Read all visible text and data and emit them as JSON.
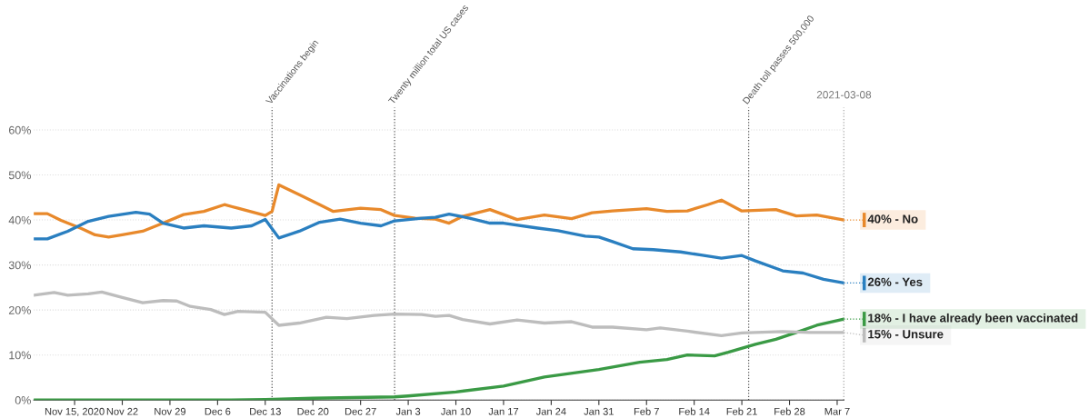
{
  "chart_data": {
    "type": "line",
    "xlim": [
      "2020-11-09",
      "2021-03-08"
    ],
    "ylim": [
      0,
      65
    ],
    "xticks": [
      {
        "value": "2020-11-15",
        "label": "Nov 15, 2020"
      },
      {
        "value": "2020-11-22",
        "label": "Nov 22"
      },
      {
        "value": "2020-11-29",
        "label": "Nov 29"
      },
      {
        "value": "2020-12-06",
        "label": "Dec 6"
      },
      {
        "value": "2020-12-13",
        "label": "Dec 13"
      },
      {
        "value": "2020-12-20",
        "label": "Dec 20"
      },
      {
        "value": "2020-12-27",
        "label": "Dec 27"
      },
      {
        "value": "2021-01-03",
        "label": "Jan 3"
      },
      {
        "value": "2021-01-10",
        "label": "Jan 10"
      },
      {
        "value": "2021-01-17",
        "label": "Jan 17"
      },
      {
        "value": "2021-01-24",
        "label": "Jan 24"
      },
      {
        "value": "2021-01-31",
        "label": "Jan 31"
      },
      {
        "value": "2021-02-07",
        "label": "Feb 7"
      },
      {
        "value": "2021-02-14",
        "label": "Feb 14"
      },
      {
        "value": "2021-02-21",
        "label": "Feb 21"
      },
      {
        "value": "2021-02-28",
        "label": "Feb 28"
      },
      {
        "value": "2021-03-07",
        "label": "Mar 7"
      }
    ],
    "yticks": [
      {
        "value": 0,
        "label": "0%"
      },
      {
        "value": 10,
        "label": "10%"
      },
      {
        "value": 20,
        "label": "20%"
      },
      {
        "value": 30,
        "label": "30%"
      },
      {
        "value": 40,
        "label": "40%"
      },
      {
        "value": 50,
        "label": "50%"
      },
      {
        "value": 60,
        "label": "60%"
      }
    ],
    "grid": "y",
    "legend": "right",
    "marker": "none",
    "line_style": "solid",
    "ref_lines": [
      {
        "axis": "x",
        "value": "2020-12-14",
        "label": "Vaccinations begin",
        "color": "#555555",
        "line_style": "dotted"
      },
      {
        "axis": "x",
        "value": "2021-01-01",
        "label": "Twenty million total US cases",
        "color": "#555555",
        "line_style": "dotted"
      },
      {
        "axis": "x",
        "value": "2021-02-22",
        "label": "Death toll passes 500,000",
        "color": "#555555",
        "line_style": "dotted"
      },
      {
        "axis": "x",
        "value": "2021-03-08",
        "label": "2021-03-08",
        "color": "#555555",
        "line_style": "dotted"
      }
    ],
    "series": [
      {
        "name": "40% - No",
        "color": "#e8892b",
        "x": [
          "2020-11-09",
          "2020-11-11",
          "2020-11-13",
          "2020-11-16",
          "2020-11-18",
          "2020-11-20",
          "2020-11-22",
          "2020-11-25",
          "2020-11-28",
          "2020-12-01",
          "2020-12-04",
          "2020-12-07",
          "2020-12-09",
          "2020-12-13",
          "2020-12-14",
          "2020-12-15",
          "2020-12-18",
          "2020-12-21",
          "2020-12-23",
          "2020-12-27",
          "2020-12-30",
          "2021-01-01",
          "2021-01-04",
          "2021-01-07",
          "2021-01-09",
          "2021-01-11",
          "2021-01-15",
          "2021-01-17",
          "2021-01-19",
          "2021-01-23",
          "2021-01-27",
          "2021-01-30",
          "2021-02-02",
          "2021-02-07",
          "2021-02-10",
          "2021-02-13",
          "2021-02-16",
          "2021-02-18",
          "2021-02-21",
          "2021-02-26",
          "2021-03-01",
          "2021-03-04",
          "2021-03-08"
        ],
        "values": [
          41.4,
          41.4,
          39.9,
          38.1,
          36.7,
          36.2,
          36.7,
          37.5,
          39.3,
          41.2,
          41.9,
          43.4,
          42.6,
          41.0,
          41.9,
          47.8,
          45.6,
          43.4,
          41.9,
          42.6,
          42.3,
          41.0,
          40.4,
          40.2,
          39.3,
          40.8,
          42.3,
          41.2,
          40.1,
          41.1,
          40.3,
          41.6,
          42.0,
          42.5,
          41.9,
          42.0,
          43.4,
          44.4,
          42.0,
          42.3,
          40.9,
          41.1,
          40
        ]
      },
      {
        "name": "26% - Yes",
        "color": "#2a7fc0",
        "x": [
          "2020-11-09",
          "2020-11-11",
          "2020-11-14",
          "2020-11-17",
          "2020-11-20",
          "2020-11-24",
          "2020-11-26",
          "2020-11-28",
          "2020-12-01",
          "2020-12-04",
          "2020-12-08",
          "2020-12-11",
          "2020-12-13",
          "2020-12-15",
          "2020-12-18",
          "2020-12-21",
          "2020-12-24",
          "2020-12-27",
          "2020-12-30",
          "2021-01-01",
          "2021-01-05",
          "2021-01-07",
          "2021-01-09",
          "2021-01-12",
          "2021-01-15",
          "2021-01-17",
          "2021-01-22",
          "2021-01-25",
          "2021-01-29",
          "2021-01-31",
          "2021-02-02",
          "2021-02-05",
          "2021-02-08",
          "2021-02-12",
          "2021-02-15",
          "2021-02-18",
          "2021-02-21",
          "2021-02-23",
          "2021-02-27",
          "2021-03-02",
          "2021-03-05",
          "2021-03-08"
        ],
        "values": [
          35.8,
          35.8,
          37.5,
          39.7,
          40.8,
          41.7,
          41.3,
          39.3,
          38.2,
          38.7,
          38.2,
          38.7,
          40.1,
          36.0,
          37.5,
          39.5,
          40.2,
          39.3,
          38.7,
          39.8,
          40.4,
          40.6,
          41.3,
          40.4,
          39.3,
          39.3,
          38.2,
          37.6,
          36.4,
          36.2,
          35.2,
          33.6,
          33.4,
          32.9,
          32.2,
          31.5,
          32.1,
          30.9,
          28.7,
          28.2,
          26.8,
          26
        ]
      },
      {
        "name": "18% - I have already been vaccinated",
        "color": "#3a9a45",
        "x": [
          "2020-11-09",
          "2020-11-22",
          "2020-12-06",
          "2020-12-13",
          "2020-12-20",
          "2021-01-01",
          "2021-01-03",
          "2021-01-10",
          "2021-01-17",
          "2021-01-23",
          "2021-01-31",
          "2021-02-06",
          "2021-02-10",
          "2021-02-13",
          "2021-02-17",
          "2021-02-19",
          "2021-02-23",
          "2021-02-26",
          "2021-03-01",
          "2021-03-04",
          "2021-03-08"
        ],
        "values": [
          0,
          0,
          0,
          0.1,
          0.4,
          0.7,
          0.9,
          1.8,
          3.1,
          5.1,
          6.8,
          8.4,
          9.0,
          10.0,
          9.8,
          10.6,
          12.4,
          13.5,
          15.0,
          16.6,
          18
        ]
      },
      {
        "name": "15% - Unsure",
        "color": "#bdbdbd",
        "x": [
          "2020-11-09",
          "2020-11-12",
          "2020-11-14",
          "2020-11-17",
          "2020-11-19",
          "2020-11-22",
          "2020-11-25",
          "2020-11-28",
          "2020-11-30",
          "2020-12-02",
          "2020-12-05",
          "2020-12-07",
          "2020-12-09",
          "2020-12-13",
          "2020-12-15",
          "2020-12-18",
          "2020-12-22",
          "2020-12-25",
          "2020-12-29",
          "2021-01-01",
          "2021-01-05",
          "2021-01-07",
          "2021-01-09",
          "2021-01-11",
          "2021-01-15",
          "2021-01-19",
          "2021-01-23",
          "2021-01-27",
          "2021-01-30",
          "2021-02-02",
          "2021-02-07",
          "2021-02-09",
          "2021-02-13",
          "2021-02-18",
          "2021-02-21",
          "2021-02-27",
          "2021-03-03",
          "2021-03-08"
        ],
        "values": [
          23.3,
          23.9,
          23.3,
          23.6,
          24.0,
          22.8,
          21.6,
          22.1,
          22.0,
          20.8,
          20.1,
          19.0,
          19.7,
          19.5,
          16.6,
          17.1,
          18.4,
          18.1,
          18.8,
          19.1,
          19.0,
          18.6,
          18.8,
          17.9,
          16.9,
          17.8,
          17.1,
          17.4,
          16.2,
          16.2,
          15.6,
          16.0,
          15.3,
          14.3,
          14.9,
          15.2,
          15.0,
          15
        ]
      }
    ]
  }
}
